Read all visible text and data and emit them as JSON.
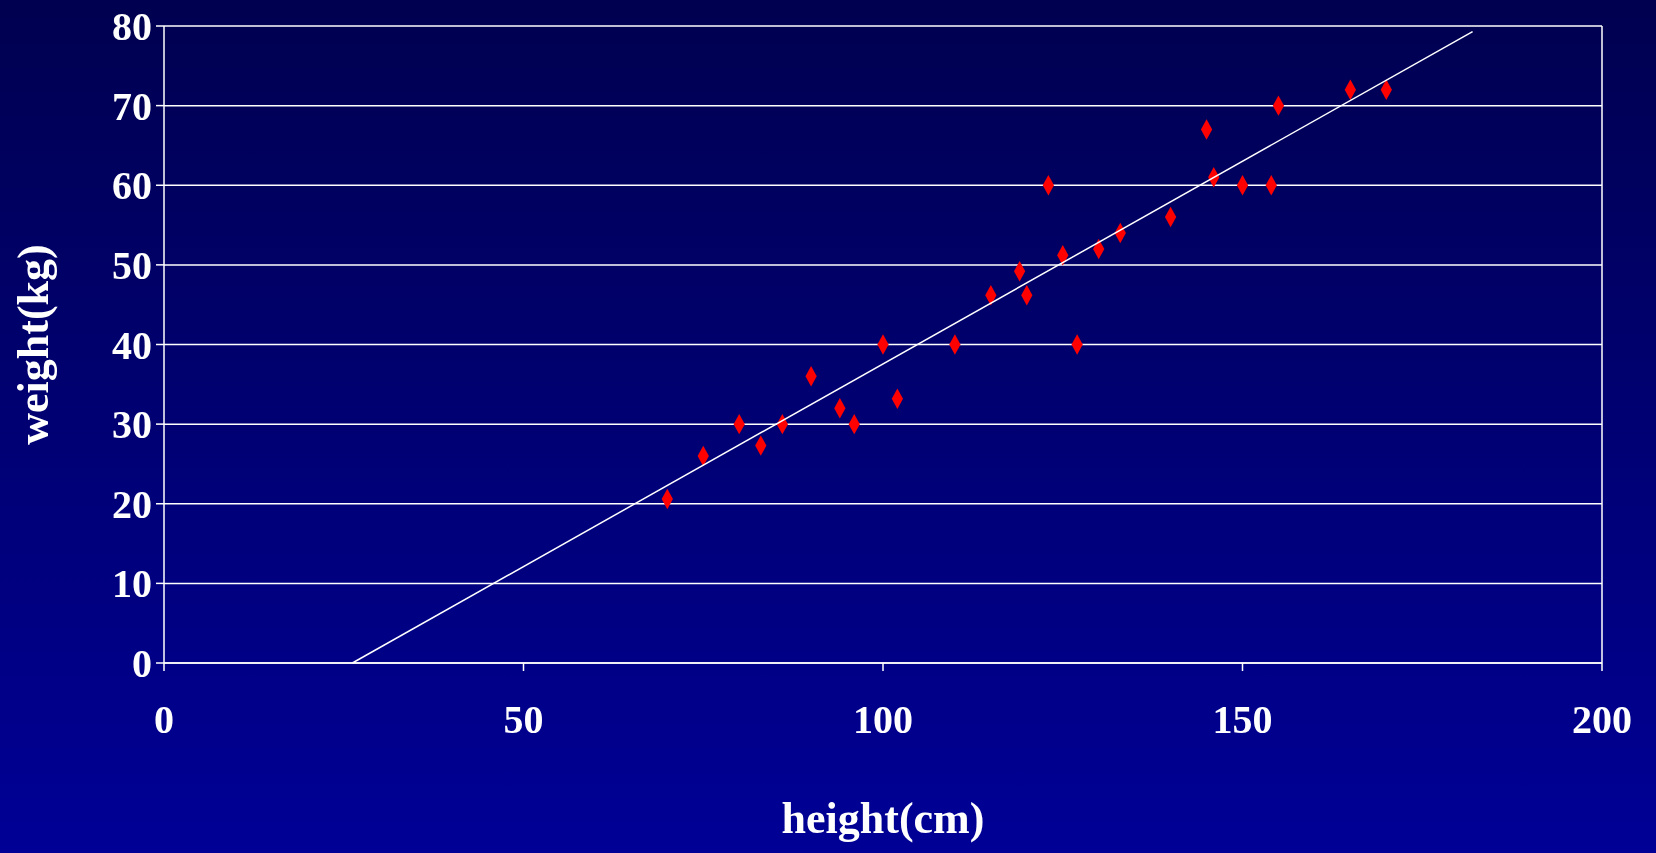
{
  "chart_data": {
    "type": "scatter",
    "xlabel": "height(cm)",
    "ylabel": "weight(kg)",
    "xlim": [
      0,
      200
    ],
    "xticks": [
      0,
      50,
      100,
      150,
      200
    ],
    "ylim": [
      0,
      80
    ],
    "yticks": [
      0,
      10,
      20,
      30,
      40,
      50,
      60,
      70,
      80
    ],
    "grid": "y",
    "series": [
      {
        "marker": "diamond",
        "color": "#ff0000",
        "x": [
          70,
          75,
          80,
          83,
          86,
          90,
          94,
          96,
          100,
          102,
          110,
          115,
          119,
          120,
          123,
          125,
          127,
          130,
          133,
          140,
          145,
          146,
          150,
          154,
          155,
          165,
          170
        ],
        "values": [
          20.6,
          26,
          30,
          27.3,
          30,
          36,
          32,
          30,
          40,
          33.2,
          40,
          46.2,
          49.2,
          46.2,
          60,
          51.2,
          40,
          52,
          54,
          56,
          67,
          61,
          60,
          60,
          70,
          72,
          72
        ]
      },
      {
        "type": "line",
        "color": "#ffffff",
        "x": [
          26.2,
          182
        ],
        "values": [
          0,
          79.3
        ]
      }
    ]
  }
}
